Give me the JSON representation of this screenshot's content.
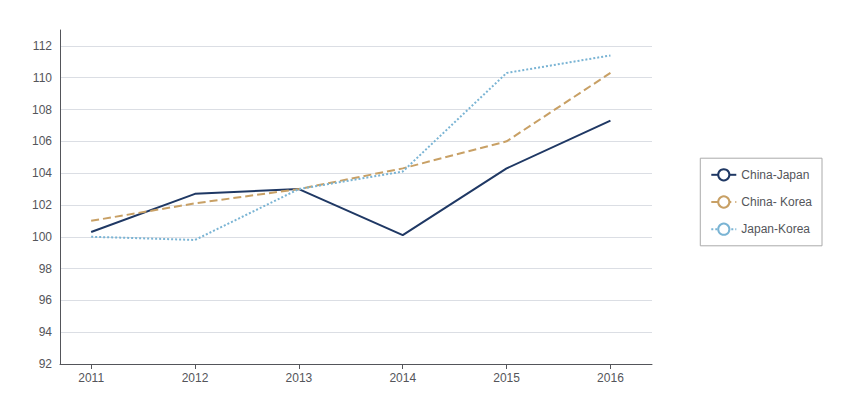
{
  "chart_data": {
    "type": "line",
    "x": [
      2011,
      2012,
      2013,
      2014,
      2015,
      2016
    ],
    "xlim": [
      2010.7,
      2016.4
    ],
    "xticks": [
      2011,
      2012,
      2013,
      2014,
      2015,
      2016
    ],
    "ylim": [
      92,
      113
    ],
    "yticks": [
      92,
      94,
      96,
      98,
      100,
      102,
      104,
      106,
      108,
      110,
      112
    ],
    "grid": true,
    "legend": "right",
    "series": [
      {
        "name": "China-Japan",
        "color": "#1f3864",
        "line_style": "solid",
        "values": [
          100.3,
          102.7,
          103.0,
          100.1,
          104.3,
          107.3
        ]
      },
      {
        "name": "China- Korea",
        "color": "#c8a065",
        "line_style": "dashed",
        "values": [
          101.0,
          102.1,
          103.0,
          104.3,
          106.0,
          110.3
        ]
      },
      {
        "name": "Japan-Korea",
        "color": "#7ab4d4",
        "line_style": "dotted",
        "values": [
          100.0,
          99.8,
          103.0,
          104.1,
          110.3,
          111.4
        ]
      }
    ]
  }
}
